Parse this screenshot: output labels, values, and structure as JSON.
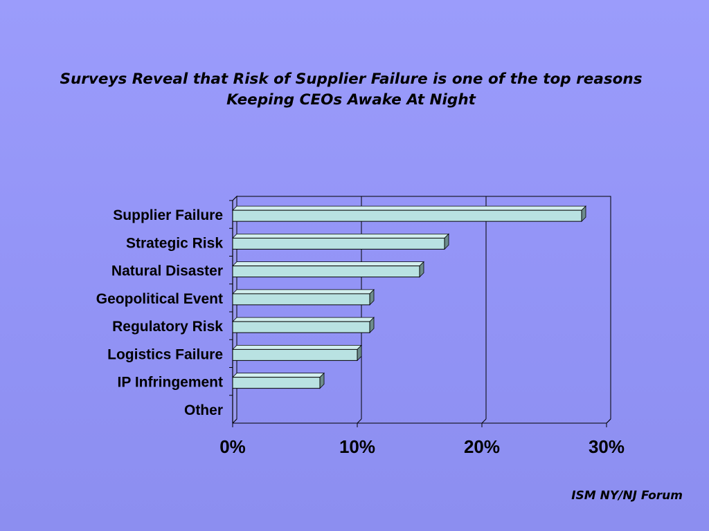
{
  "slide": {
    "title_line1": "Surveys Reveal that Risk of Supplier Failure is one of the top reasons",
    "title_line2": "Keeping CEOs Awake At Night",
    "footer": "ISM NY/NJ Forum"
  },
  "colors": {
    "bar_face": "#b9e2e2",
    "bar_top": "#d2eeee",
    "bar_side": "#6d8c8c",
    "bar_stroke": "#000000",
    "gridline": "#000000"
  },
  "chart_data": {
    "type": "bar",
    "orientation": "horizontal",
    "title": "",
    "xlabel": "",
    "ylabel": "",
    "categories": [
      "Supplier Failure",
      "Strategic Risk",
      "Natural Disaster",
      "Geopolitical Event",
      "Regulatory Risk",
      "Logistics Failure",
      "IP Infringement",
      "Other"
    ],
    "values": [
      28,
      17,
      15,
      11,
      11,
      10,
      7,
      0
    ],
    "value_unit": "%",
    "xlim": [
      0,
      30
    ],
    "xticks": [
      "0%",
      "10%",
      "20%",
      "30%"
    ],
    "grid": true,
    "legend": "none"
  }
}
